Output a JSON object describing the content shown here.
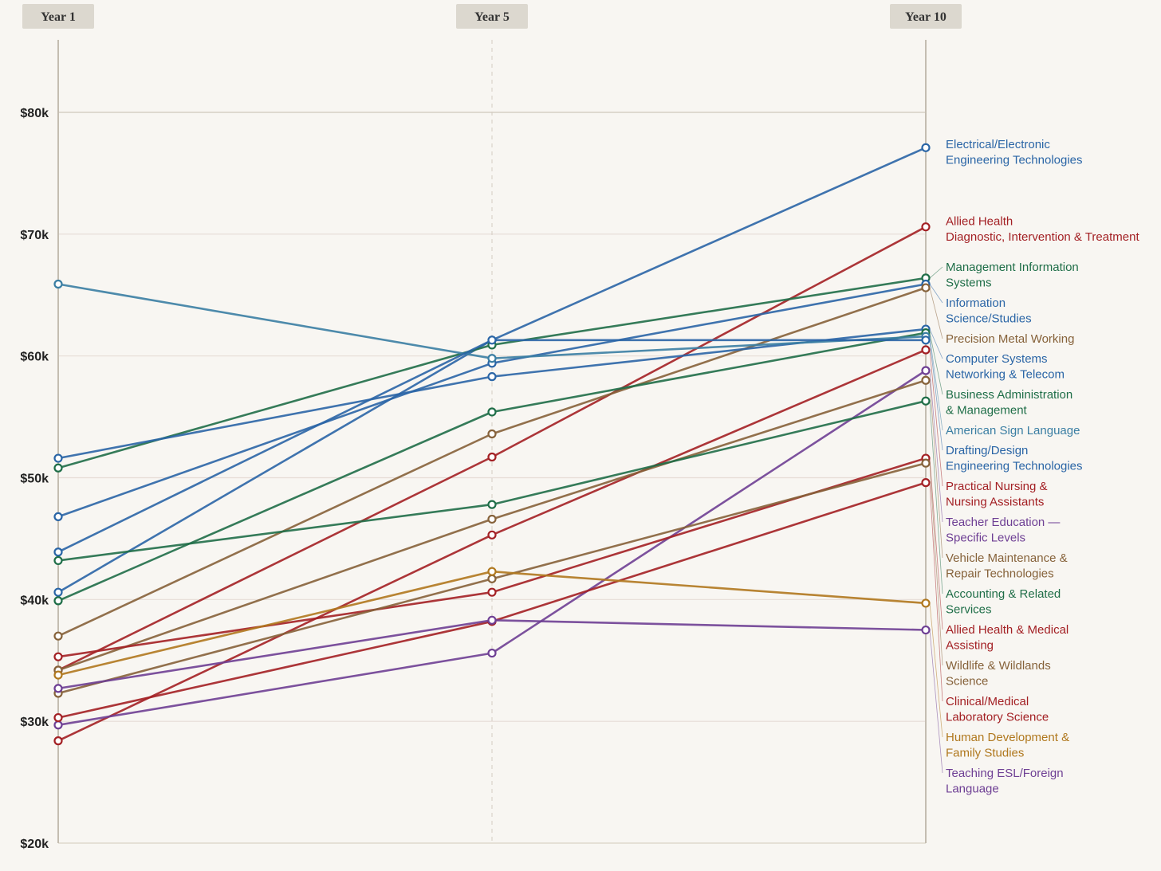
{
  "chart_data": {
    "type": "line",
    "title": "",
    "xlabel": "",
    "ylabel": "",
    "categories": [
      "Year 1",
      "Year 5",
      "Year 10"
    ],
    "ylim": [
      20000,
      85000
    ],
    "y_ticks": [
      20000,
      30000,
      40000,
      50000,
      60000,
      70000,
      80000
    ],
    "y_tick_labels": [
      "$20k",
      "$30k",
      "$40k",
      "$50k",
      "$60k",
      "$70k",
      "$80k"
    ],
    "grid": true,
    "legend": "labels at right end of lines",
    "series": [
      {
        "name": "Electrical/Electronic Engineering Technologies",
        "label_lines": [
          "Electrical/Electronic",
          "Engineering Technologies"
        ],
        "color": "#2a65a6",
        "values": [
          40600,
          61300,
          77100
        ]
      },
      {
        "name": "Allied Health Diagnostic, Intervention & Treatment",
        "label_lines": [
          "Allied Health",
          "Diagnostic, Intervention & Treatment"
        ],
        "color": "#a32024",
        "values": [
          34200,
          51700,
          70600
        ]
      },
      {
        "name": "Management Information Systems",
        "label_lines": [
          "Management Information",
          "Systems"
        ],
        "color": "#1f6e48",
        "values": [
          50800,
          60900,
          66400
        ]
      },
      {
        "name": "Information Science/Studies",
        "label_lines": [
          "Information",
          "Science/Studies"
        ],
        "color": "#2a65a6",
        "values": [
          46800,
          59400,
          65900
        ]
      },
      {
        "name": "Precision Metal Working",
        "label_lines": [
          "Precision Metal Working"
        ],
        "color": "#86623a",
        "values": [
          37000,
          53600,
          65600
        ]
      },
      {
        "name": "Computer Systems Networking & Telecom",
        "label_lines": [
          "Computer Systems",
          "Networking & Telecom"
        ],
        "color": "#2a65a6",
        "values": [
          51600,
          58300,
          62200
        ]
      },
      {
        "name": "Business Administration & Management",
        "label_lines": [
          "Business Administration",
          "& Management"
        ],
        "color": "#1f6e48",
        "values": [
          39900,
          55400,
          61900
        ]
      },
      {
        "name": "American Sign Language",
        "label_lines": [
          "American Sign Language"
        ],
        "color": "#3a7ea3",
        "values": [
          65900,
          59800,
          61600
        ]
      },
      {
        "name": "Drafting/Design Engineering Technologies",
        "label_lines": [
          "Drafting/Design",
          "Engineering Technologies"
        ],
        "color": "#2a65a6",
        "values": [
          43900,
          61300,
          61300
        ]
      },
      {
        "name": "Practical Nursing & Nursing Assistants",
        "label_lines": [
          "Practical Nursing &",
          "Nursing Assistants"
        ],
        "color": "#a32024",
        "values": [
          28400,
          45300,
          60500
        ]
      },
      {
        "name": "Teacher Education — Specific Levels",
        "label_lines": [
          "Teacher Education —",
          "Specific Levels"
        ],
        "color": "#6e3f94",
        "values": [
          29700,
          35600,
          58800
        ]
      },
      {
        "name": "Vehicle Maintenance & Repair Technologies",
        "label_lines": [
          "Vehicle Maintenance &",
          "Repair Technologies"
        ],
        "color": "#86623a",
        "values": [
          34200,
          46600,
          58000
        ]
      },
      {
        "name": "Accounting & Related Services",
        "label_lines": [
          "Accounting & Related",
          "Services"
        ],
        "color": "#1f6e48",
        "values": [
          43200,
          47800,
          56300
        ]
      },
      {
        "name": "Allied Health & Medical Assisting",
        "label_lines": [
          "Allied Health & Medical",
          "Assisting"
        ],
        "color": "#a32024",
        "values": [
          35300,
          40600,
          51600
        ]
      },
      {
        "name": "Wildlife & Wildlands Science",
        "label_lines": [
          "Wildlife & Wildlands",
          "Science"
        ],
        "color": "#86623a",
        "values": [
          32300,
          41700,
          51200
        ]
      },
      {
        "name": "Clinical/Medical Laboratory Science",
        "label_lines": [
          "Clinical/Medical",
          "Laboratory Science"
        ],
        "color": "#a32024",
        "values": [
          30300,
          38200,
          49600
        ]
      },
      {
        "name": "Human Development & Family Studies",
        "label_lines": [
          "Human Development &",
          "Family Studies"
        ],
        "color": "#b0781e",
        "values": [
          33800,
          42300,
          39700
        ]
      },
      {
        "name": "Teaching ESL/Foreign Language",
        "label_lines": [
          "Teaching ESL/Foreign",
          "Language"
        ],
        "color": "#6e3f94",
        "values": [
          32700,
          38300,
          37500
        ]
      }
    ]
  }
}
